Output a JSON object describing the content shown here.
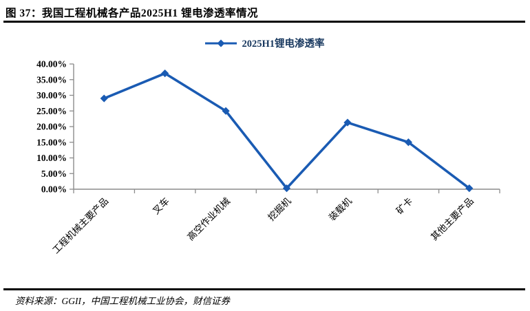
{
  "header": {
    "title": "图 37：我国工程机械各产品2025H1 锂电渗透率情况"
  },
  "legend": {
    "label": "2025H1锂电渗透率"
  },
  "footer": {
    "source": "资料来源：GGII，中国工程机械工业协会，财信证券"
  },
  "colors": {
    "line": "#1A5BB3",
    "legend_text": "#17375E",
    "axis": "#8C8C8C",
    "tick_label": "#000000",
    "rule": "#000000"
  },
  "chart_data": {
    "type": "line",
    "title": "图 37：我国工程机械各产品2025H1 锂电渗透率情况",
    "categories": [
      "工程机械主要产品",
      "叉车",
      "高空作业机械",
      "挖掘机",
      "装载机",
      "矿卡",
      "其他主要产品"
    ],
    "series": [
      {
        "name": "2025H1锂电渗透率",
        "values": [
          29.0,
          37.0,
          25.0,
          0.3,
          21.3,
          15.0,
          0.3
        ]
      }
    ],
    "xlabel": "",
    "ylabel": "",
    "ylim": [
      0,
      40
    ],
    "ytick_step": 5,
    "ytick_decimals": 2,
    "ytick_suffix": "%",
    "grid": false,
    "legend_position": "top-center",
    "marker": "diamond",
    "x_label_rotation": -45
  }
}
